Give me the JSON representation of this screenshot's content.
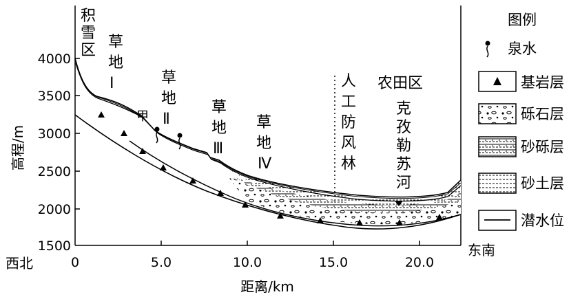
{
  "chart_data": {
    "type": "cross-section",
    "ylabel": "高程/m",
    "xlabel": "距离/km",
    "y_ticks": [
      "4000",
      "3500",
      "3000",
      "2500",
      "2000",
      "1500"
    ],
    "x_ticks": [
      "0",
      "5.0",
      "10.0",
      "15.0",
      "20.0"
    ],
    "ylim": [
      1500,
      4000
    ],
    "xlim": [
      0,
      22.5
    ],
    "direction_left": "西北",
    "direction_right": "东南",
    "regions": {
      "snow": [
        "积",
        "雪",
        "区"
      ],
      "grass1": [
        "草",
        "地",
        "Ⅰ"
      ],
      "grass2": [
        "草",
        "地",
        "Ⅱ"
      ],
      "grass3": [
        "草",
        "地",
        "Ⅲ"
      ],
      "grass4": [
        "草",
        "地",
        "Ⅳ"
      ],
      "jia": "甲",
      "windbreak": [
        "人",
        "工",
        "防",
        "风",
        "林"
      ],
      "farm": "农田区",
      "river": [
        "克",
        "孜",
        "勒",
        "苏",
        "河"
      ]
    },
    "legend": {
      "title": "图例",
      "spring": "泉水",
      "bedrock": "基岩层",
      "gravel": "砾石层",
      "sandgravel": "砂砾层",
      "sandsoil": "砂土层",
      "water_table": "潜水位"
    }
  }
}
